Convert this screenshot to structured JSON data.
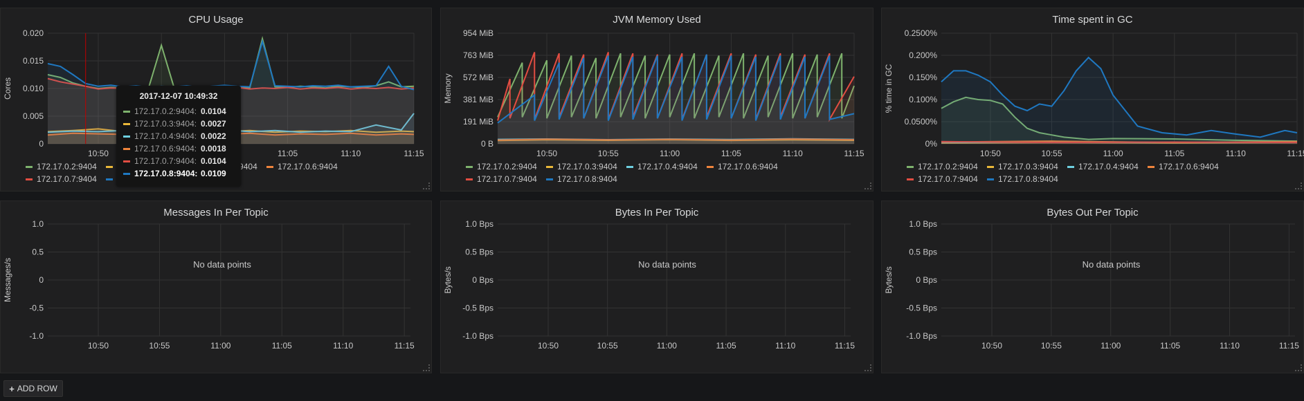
{
  "colors": {
    "s2": "#7eb26d",
    "s3": "#eab839",
    "s4": "#6ed0e0",
    "s6": "#ef843c",
    "s7": "#e24d42",
    "s8": "#1f78c1",
    "grid": "#333333",
    "text": "#c8c8c8",
    "crosshair": "#c00000"
  },
  "no_data_text": "No data points",
  "add_row_label": "ADD ROW",
  "add_row_icon": "plus-icon",
  "chart_data": [
    {
      "title": "CPU Usage",
      "type": "line",
      "ylabel": "Cores",
      "ylim": [
        0,
        0.02
      ],
      "yticks": [
        "0",
        "0.005",
        "0.010",
        "0.015",
        "0.020"
      ],
      "xlim": [
        "10:46",
        "11:15"
      ],
      "xticks": [
        "10:50",
        "10:55",
        "11:00",
        "11:05",
        "11:10",
        "11:15"
      ],
      "grid": true,
      "legend_position": "bottom",
      "series": [
        {
          "name": "172.17.0.2:9404",
          "color_key": "s2",
          "x": [
            "10:46",
            "10:47",
            "10:48",
            "10:49",
            "10:50",
            "10:51",
            "10:52",
            "10:53",
            "10:54",
            "10:55",
            "10:56",
            "10:57",
            "10:58",
            "10:59",
            "11:00",
            "11:01",
            "11:02",
            "11:03",
            "11:04",
            "11:05",
            "11:06",
            "11:07",
            "11:08",
            "11:09",
            "11:10",
            "11:11",
            "11:12",
            "11:13",
            "11:14",
            "11:15"
          ],
          "y": [
            0.0125,
            0.012,
            0.011,
            0.0104,
            0.01,
            0.0102,
            0.0101,
            0.0103,
            0.0102,
            0.0178,
            0.0102,
            0.0101,
            0.0103,
            0.0102,
            0.0104,
            0.0103,
            0.0101,
            0.019,
            0.0103,
            0.0102,
            0.0104,
            0.0103,
            0.0101,
            0.0104,
            0.0103,
            0.0102,
            0.0105,
            0.0112,
            0.0103,
            0.0104
          ]
        },
        {
          "name": "172.17.0.3:9404",
          "color_key": "s3",
          "x": [
            "10:46",
            "10:48",
            "10:50",
            "10:52",
            "10:54",
            "10:56",
            "10:58",
            "11:00",
            "11:02",
            "11:04",
            "11:06",
            "11:08",
            "11:10",
            "11:12",
            "11:14",
            "11:15"
          ],
          "y": [
            0.0022,
            0.0024,
            0.0027,
            0.0022,
            0.0025,
            0.0021,
            0.0023,
            0.0022,
            0.0024,
            0.0021,
            0.0023,
            0.0022,
            0.0024,
            0.0021,
            0.0023,
            0.0022
          ]
        },
        {
          "name": "172.17.0.4:9404",
          "color_key": "s4",
          "x": [
            "10:46",
            "10:48",
            "10:50",
            "10:52",
            "10:54",
            "10:56",
            "10:58",
            "11:00",
            "11:02",
            "11:04",
            "11:06",
            "11:08",
            "11:10",
            "11:12",
            "11:14",
            "11:15"
          ],
          "y": [
            0.0021,
            0.0023,
            0.0022,
            0.0024,
            0.0021,
            0.0023,
            0.0022,
            0.0025,
            0.0022,
            0.0024,
            0.0021,
            0.0023,
            0.0022,
            0.0034,
            0.0025,
            0.0055
          ]
        },
        {
          "name": "172.17.0.6:9404",
          "color_key": "s6",
          "x": [
            "10:46",
            "10:48",
            "10:50",
            "10:52",
            "10:54",
            "10:56",
            "10:58",
            "11:00",
            "11:02",
            "11:04",
            "11:06",
            "11:08",
            "11:10",
            "11:12",
            "11:14",
            "11:15"
          ],
          "y": [
            0.0016,
            0.0019,
            0.0018,
            0.0017,
            0.0019,
            0.0016,
            0.0018,
            0.0017,
            0.0019,
            0.0016,
            0.0018,
            0.0017,
            0.0019,
            0.0016,
            0.0018,
            0.0017
          ]
        },
        {
          "name": "172.17.0.7:9404",
          "color_key": "s7",
          "x": [
            "10:46",
            "10:47",
            "10:48",
            "10:49",
            "10:50",
            "10:51",
            "10:52",
            "10:53",
            "10:54",
            "10:55",
            "10:56",
            "10:57",
            "10:58",
            "10:59",
            "11:00",
            "11:01",
            "11:02",
            "11:03",
            "11:04",
            "11:05",
            "11:06",
            "11:07",
            "11:08",
            "11:09",
            "11:10",
            "11:11",
            "11:12",
            "11:13",
            "11:14",
            "11:15"
          ],
          "y": [
            0.0118,
            0.0112,
            0.0108,
            0.0104,
            0.0099,
            0.0101,
            0.01,
            0.0102,
            0.0099,
            0.0101,
            0.01,
            0.0102,
            0.0099,
            0.0101,
            0.01,
            0.0102,
            0.0099,
            0.0101,
            0.01,
            0.0102,
            0.0099,
            0.0101,
            0.01,
            0.0102,
            0.0099,
            0.0101,
            0.01,
            0.0102,
            0.0099,
            0.0101
          ]
        },
        {
          "name": "172.17.0.8:9404",
          "color_key": "s8",
          "x": [
            "10:46",
            "10:47",
            "10:48",
            "10:49",
            "10:50",
            "10:51",
            "10:52",
            "10:53",
            "10:54",
            "10:55",
            "10:56",
            "10:57",
            "10:58",
            "10:59",
            "11:00",
            "11:01",
            "11:02",
            "11:03",
            "11:04",
            "11:05",
            "11:06",
            "11:07",
            "11:08",
            "11:09",
            "11:10",
            "11:11",
            "11:12",
            "11:13",
            "11:14",
            "11:15"
          ],
          "y": [
            0.0145,
            0.014,
            0.0125,
            0.0109,
            0.0104,
            0.0106,
            0.0103,
            0.0105,
            0.0102,
            0.0104,
            0.0103,
            0.0105,
            0.0102,
            0.0104,
            0.0106,
            0.0104,
            0.0103,
            0.0185,
            0.0105,
            0.0104,
            0.0103,
            0.0105,
            0.0104,
            0.0106,
            0.0103,
            0.0104,
            0.0105,
            0.014,
            0.0104,
            0.0098
          ]
        }
      ],
      "crosshair_x": "10:49",
      "tooltip": {
        "time": "2017-12-07 10:49:32",
        "rows": [
          {
            "name": "172.17.0.2:9404:",
            "value": "0.0104",
            "color_key": "s2"
          },
          {
            "name": "172.17.0.3:9404:",
            "value": "0.0027",
            "color_key": "s3"
          },
          {
            "name": "172.17.0.4:9404:",
            "value": "0.0022",
            "color_key": "s4"
          },
          {
            "name": "172.17.0.6:9404:",
            "value": "0.0018",
            "color_key": "s6"
          },
          {
            "name": "172.17.0.7:9404:",
            "value": "0.0104",
            "color_key": "s7"
          },
          {
            "name": "172.17.0.8:9404:",
            "value": "0.0109",
            "color_key": "s8",
            "highlight": true
          }
        ]
      }
    },
    {
      "title": "JVM Memory Used",
      "type": "line",
      "ylabel": "Memory",
      "ylim": [
        0,
        954
      ],
      "yticks": [
        "0 B",
        "191 MiB",
        "381 MiB",
        "572 MiB",
        "763 MiB",
        "954 MiB"
      ],
      "xlim": [
        "10:46",
        "11:15"
      ],
      "xticks": [
        "10:50",
        "10:55",
        "11:00",
        "11:05",
        "11:10",
        "11:15"
      ],
      "grid": true,
      "legend_position": "bottom",
      "series": [
        {
          "name": "172.17.0.2:9404",
          "color_key": "s2",
          "x": [
            "10:46",
            "10:48",
            "10:48",
            "10:50",
            "10:50",
            "10:52",
            "10:52",
            "10:54",
            "10:54",
            "10:56",
            "10:56",
            "10:58",
            "10:58",
            "11:00",
            "11:00",
            "11:02",
            "11:02",
            "11:04",
            "11:04",
            "11:06",
            "11:06",
            "11:08",
            "11:08",
            "11:10",
            "11:10",
            "11:12",
            "11:12",
            "11:14",
            "11:14",
            "11:15"
          ],
          "y": [
            230,
            700,
            230,
            720,
            220,
            760,
            230,
            740,
            220,
            780,
            230,
            760,
            220,
            770,
            230,
            780,
            220,
            760,
            230,
            780,
            220,
            760,
            230,
            780,
            220,
            770,
            230,
            780,
            220,
            500
          ]
        },
        {
          "name": "172.17.0.3:9404",
          "color_key": "s3",
          "x": [
            "10:46",
            "10:50",
            "10:55",
            "11:00",
            "11:05",
            "11:10",
            "11:15"
          ],
          "y": [
            28,
            35,
            30,
            36,
            29,
            34,
            30
          ]
        },
        {
          "name": "172.17.0.4:9404",
          "color_key": "s4",
          "x": [
            "10:46",
            "10:50",
            "10:55",
            "11:00",
            "11:05",
            "11:10",
            "11:15"
          ],
          "y": [
            38,
            42,
            36,
            41,
            37,
            43,
            38
          ]
        },
        {
          "name": "172.17.0.6:9404",
          "color_key": "s6",
          "x": [
            "10:46",
            "10:50",
            "10:55",
            "11:00",
            "11:05",
            "11:10",
            "11:15"
          ],
          "y": [
            32,
            40,
            34,
            39,
            33,
            41,
            35
          ]
        },
        {
          "name": "172.17.0.7:9404",
          "color_key": "s7",
          "x": [
            "10:46",
            "10:47",
            "10:47",
            "10:49",
            "10:49",
            "10:51",
            "10:51",
            "10:53",
            "10:53",
            "10:55",
            "10:55",
            "10:57",
            "10:57",
            "10:59",
            "10:59",
            "11:01",
            "11:01",
            "11:03",
            "11:03",
            "11:05",
            "11:05",
            "11:07",
            "11:07",
            "11:09",
            "11:09",
            "11:11",
            "11:11",
            "11:13",
            "11:13",
            "11:15"
          ],
          "y": [
            200,
            560,
            220,
            790,
            210,
            780,
            230,
            770,
            220,
            790,
            210,
            780,
            230,
            770,
            220,
            780,
            210,
            770,
            230,
            780,
            220,
            770,
            210,
            780,
            230,
            770,
            220,
            780,
            210,
            580
          ]
        },
        {
          "name": "172.17.0.8:9404",
          "color_key": "s8",
          "x": [
            "10:46",
            "10:49",
            "10:49",
            "10:51",
            "10:51",
            "10:53",
            "10:53",
            "10:55",
            "10:55",
            "10:57",
            "10:57",
            "10:59",
            "10:59",
            "11:01",
            "11:01",
            "11:03",
            "11:03",
            "11:05",
            "11:05",
            "11:07",
            "11:07",
            "11:09",
            "11:09",
            "11:11",
            "11:11",
            "11:13",
            "11:13",
            "11:15"
          ],
          "y": [
            180,
            420,
            200,
            700,
            210,
            740,
            220,
            760,
            200,
            750,
            210,
            760,
            220,
            750,
            200,
            770,
            210,
            760,
            220,
            750,
            200,
            760,
            210,
            750,
            220,
            760,
            210,
            260
          ]
        }
      ]
    },
    {
      "title": "Time spent in GC",
      "type": "line",
      "ylabel": "% time in GC",
      "ylim": [
        0,
        0.25
      ],
      "yticks": [
        "0%",
        "0.0500%",
        "0.100%",
        "0.150%",
        "0.200%",
        "0.2500%"
      ],
      "xlim": [
        "10:46",
        "11:15"
      ],
      "xticks": [
        "10:50",
        "10:55",
        "11:00",
        "11:05",
        "11:10",
        "11:15"
      ],
      "grid": true,
      "legend_position": "bottom",
      "series": [
        {
          "name": "172.17.0.2:9404",
          "color_key": "s2",
          "x": [
            "10:46",
            "10:47",
            "10:48",
            "10:49",
            "10:50",
            "10:51",
            "10:52",
            "10:53",
            "10:54",
            "10:55",
            "10:56",
            "10:58",
            "11:00",
            "11:05",
            "11:10",
            "11:15"
          ],
          "y": [
            0.08,
            0.095,
            0.105,
            0.1,
            0.098,
            0.09,
            0.06,
            0.035,
            0.025,
            0.02,
            0.015,
            0.01,
            0.012,
            0.011,
            0.008,
            0.006
          ]
        },
        {
          "name": "172.17.0.3:9404",
          "color_key": "s3",
          "x": [
            "10:46",
            "10:55",
            "11:05",
            "11:15"
          ],
          "y": [
            0.002,
            0.003,
            0.002,
            0.003
          ]
        },
        {
          "name": "172.17.0.4:9404",
          "color_key": "s4",
          "x": [
            "10:46",
            "10:55",
            "11:05",
            "11:15"
          ],
          "y": [
            0.003,
            0.004,
            0.003,
            0.004
          ]
        },
        {
          "name": "172.17.0.6:9404",
          "color_key": "s6",
          "x": [
            "10:46",
            "10:55",
            "11:05",
            "11:15"
          ],
          "y": [
            0.004,
            0.006,
            0.003,
            0.005
          ]
        },
        {
          "name": "172.17.0.7:9404",
          "color_key": "s7",
          "x": [
            "10:46",
            "10:55",
            "11:05",
            "11:15"
          ],
          "y": [
            0.005,
            0.003,
            0.004,
            0.003
          ]
        },
        {
          "name": "172.17.0.8:9404",
          "color_key": "s8",
          "x": [
            "10:46",
            "10:47",
            "10:48",
            "10:49",
            "10:50",
            "10:51",
            "10:52",
            "10:53",
            "10:54",
            "10:55",
            "10:56",
            "10:57",
            "10:58",
            "10:59",
            "11:00",
            "11:02",
            "11:04",
            "11:06",
            "11:08",
            "11:10",
            "11:12",
            "11:14",
            "11:15"
          ],
          "y": [
            0.14,
            0.165,
            0.165,
            0.155,
            0.14,
            0.11,
            0.085,
            0.075,
            0.09,
            0.085,
            0.12,
            0.165,
            0.195,
            0.17,
            0.11,
            0.04,
            0.025,
            0.02,
            0.03,
            0.022,
            0.015,
            0.03,
            0.025
          ]
        }
      ]
    },
    {
      "title": "Messages In Per Topic",
      "type": "line",
      "ylabel": "Messages/s",
      "ylim": [
        -1,
        1
      ],
      "yticks": [
        "-1.0",
        "-0.5",
        "0",
        "0.5",
        "1.0"
      ],
      "xticks": [
        "10:50",
        "10:55",
        "11:00",
        "11:05",
        "11:10",
        "11:15"
      ],
      "grid": true,
      "series": []
    },
    {
      "title": "Bytes In Per Topic",
      "type": "line",
      "ylabel": "Bytes/s",
      "ylim": [
        -1,
        1
      ],
      "yticks": [
        "-1.0 Bps",
        "-0.5 Bps",
        "0 Bps",
        "0.5 Bps",
        "1.0 Bps"
      ],
      "xticks": [
        "10:50",
        "10:55",
        "11:00",
        "11:05",
        "11:10",
        "11:15"
      ],
      "grid": true,
      "series": []
    },
    {
      "title": "Bytes Out Per Topic",
      "type": "line",
      "ylabel": "Bytes/s",
      "ylim": [
        -1,
        1
      ],
      "yticks": [
        "-1.0 Bps",
        "-0.5 Bps",
        "0 Bps",
        "0.5 Bps",
        "1.0 Bps"
      ],
      "xticks": [
        "10:50",
        "10:55",
        "11:00",
        "11:05",
        "11:10",
        "11:15"
      ],
      "grid": true,
      "series": []
    }
  ]
}
